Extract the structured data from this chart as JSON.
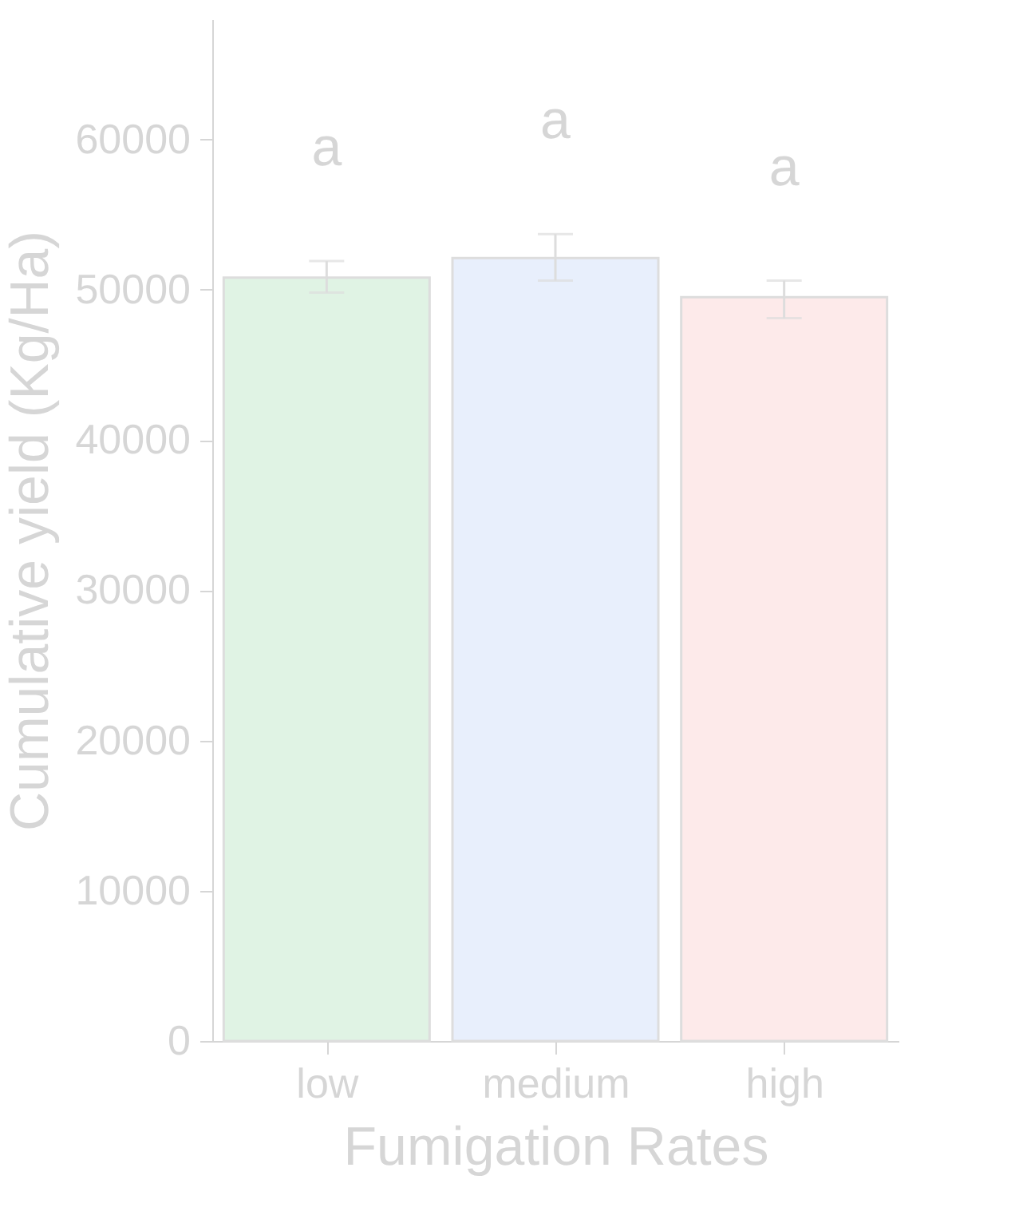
{
  "chart_data": {
    "type": "bar",
    "xlabel": "Fumigation Rates",
    "ylabel": "Cumulative yield (Kg/Ha)",
    "categories": [
      "low",
      "medium",
      "high"
    ],
    "values": [
      50800,
      52100,
      49500
    ],
    "colors": [
      "#e0f3e4",
      "#e8effc",
      "#fdeaea"
    ],
    "errors": [
      [
        49800,
        51900
      ],
      [
        50600,
        53700
      ],
      [
        48100,
        50600
      ]
    ],
    "annotations": [
      "a",
      "a",
      "a"
    ],
    "ylim": [
      0,
      68000
    ],
    "yticks": [
      0,
      10000,
      20000,
      30000,
      40000,
      50000,
      60000
    ],
    "grid": false
  }
}
